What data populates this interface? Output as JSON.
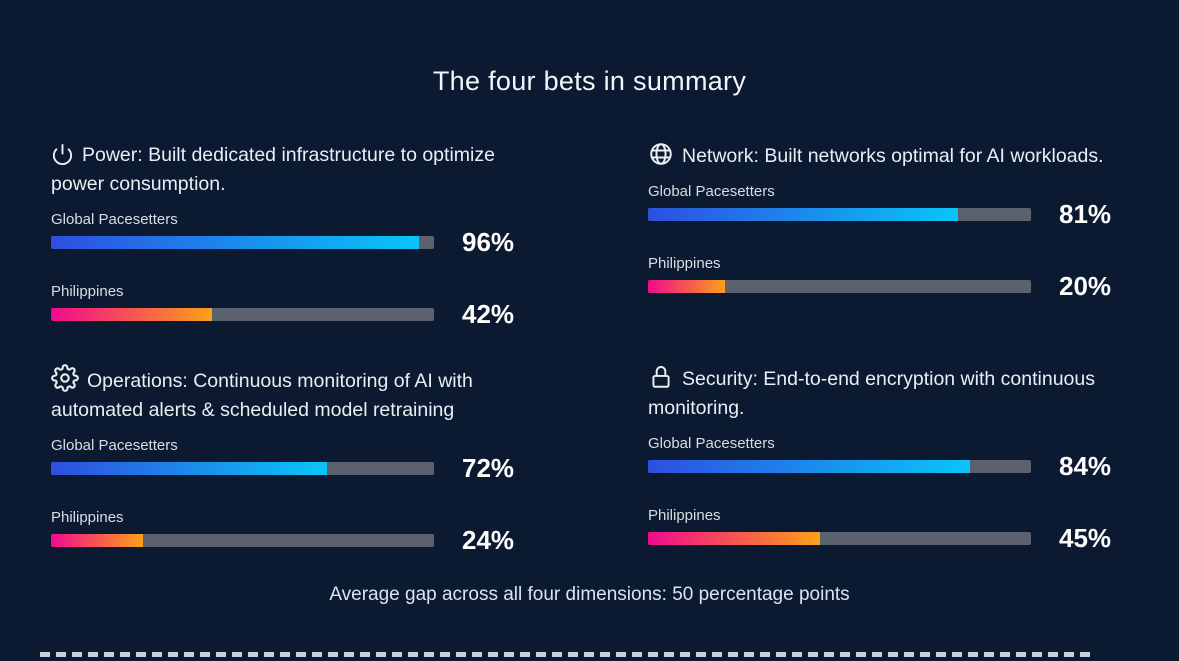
{
  "slide": {
    "title": "The four bets in summary",
    "footer": "Average gap across all four dimensions: 50 percentage points"
  },
  "quadrants": [
    {
      "id": "power",
      "icon": "power-icon",
      "heading": "Power: Built dedicated infrastructure to optimize power consumption.",
      "bars": [
        {
          "label": "Global Pacesetters",
          "value": 96,
          "display": "96%"
        },
        {
          "label": "Philippines",
          "value": 42,
          "display": "42%"
        }
      ]
    },
    {
      "id": "network",
      "icon": "globe-icon",
      "heading": "Network: Built networks optimal for AI workloads.",
      "bars": [
        {
          "label": "Global Pacesetters",
          "value": 81,
          "display": "81%"
        },
        {
          "label": "Philippines",
          "value": 20,
          "display": "20%"
        }
      ]
    },
    {
      "id": "operations",
      "icon": "gear-icon",
      "heading": "Operations: Continuous monitoring of AI with automated alerts & scheduled model retraining",
      "bars": [
        {
          "label": "Global Pacesetters",
          "value": 72,
          "display": "72%"
        },
        {
          "label": "Philippines",
          "value": 24,
          "display": "24%"
        }
      ]
    },
    {
      "id": "security",
      "icon": "lock-icon",
      "heading": "Security: End-to-end encryption with continuous monitoring.",
      "bars": [
        {
          "label": "Global Pacesetters",
          "value": 84,
          "display": "84%"
        },
        {
          "label": "Philippines",
          "value": 45,
          "display": "45%"
        }
      ]
    }
  ],
  "colors": {
    "background": "#0b1a30",
    "track": "#5b626e",
    "global_gradient_start": "#2e4fe0",
    "global_gradient_end": "#09c5f8",
    "philippines_gradient_start": "#f20a8e",
    "philippines_gradient_end": "#fba019",
    "dash": "#c9cfd7",
    "text": "#eef2f7"
  },
  "chart_data": {
    "type": "bar",
    "orientation": "horizontal",
    "title": "The four bets in summary",
    "categories": [
      "Power",
      "Network",
      "Operations",
      "Security"
    ],
    "series": [
      {
        "name": "Global Pacesetters",
        "values": [
          96,
          81,
          72,
          84
        ]
      },
      {
        "name": "Philippines",
        "values": [
          42,
          20,
          24,
          45
        ]
      }
    ],
    "unit": "%",
    "xlim": [
      0,
      100
    ],
    "grid": false,
    "legend_position": "per-bar-labels",
    "annotations": [
      "Average gap across all four dimensions: 50 percentage points"
    ]
  }
}
